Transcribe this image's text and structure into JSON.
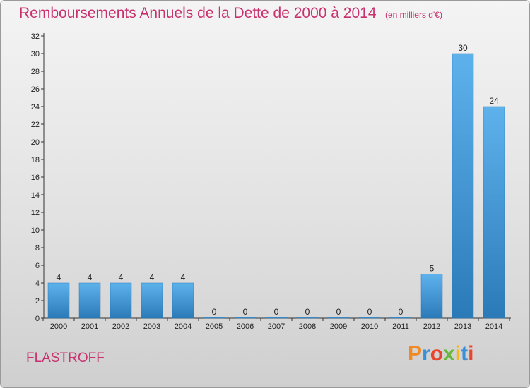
{
  "header": {
    "title": "Remboursements Annuels de la Dette de 2000 à 2014",
    "unit": "(en milliers d'€)"
  },
  "footer": {
    "commune": "FLASTROFF",
    "brand": "Proxiti"
  },
  "colors": {
    "title": "#c8316e",
    "bar_top": "#5eb2ec",
    "bar_bottom": "#2b7ab8",
    "brand_letters": [
      "#f08a24",
      "#3b8fd6",
      "#e8452c",
      "#67b93c",
      "#f2b81e",
      "#3b8fd6",
      "#e8452c"
    ]
  },
  "chart_data": {
    "type": "bar",
    "title": "Remboursements Annuels de la Dette de 2000 à 2014",
    "xlabel": "",
    "ylabel": "",
    "categories": [
      "2000",
      "2001",
      "2002",
      "2003",
      "2004",
      "2005",
      "2006",
      "2007",
      "2008",
      "2009",
      "2010",
      "2011",
      "2012",
      "2013",
      "2014"
    ],
    "values": [
      4,
      4,
      4,
      4,
      4,
      0,
      0,
      0,
      0,
      0,
      0,
      0,
      5,
      30,
      24
    ],
    "ylim": [
      0,
      32
    ],
    "yticks": [
      0,
      2,
      4,
      6,
      8,
      10,
      12,
      14,
      16,
      18,
      20,
      22,
      24,
      26,
      28,
      30,
      32
    ],
    "grid": false
  }
}
